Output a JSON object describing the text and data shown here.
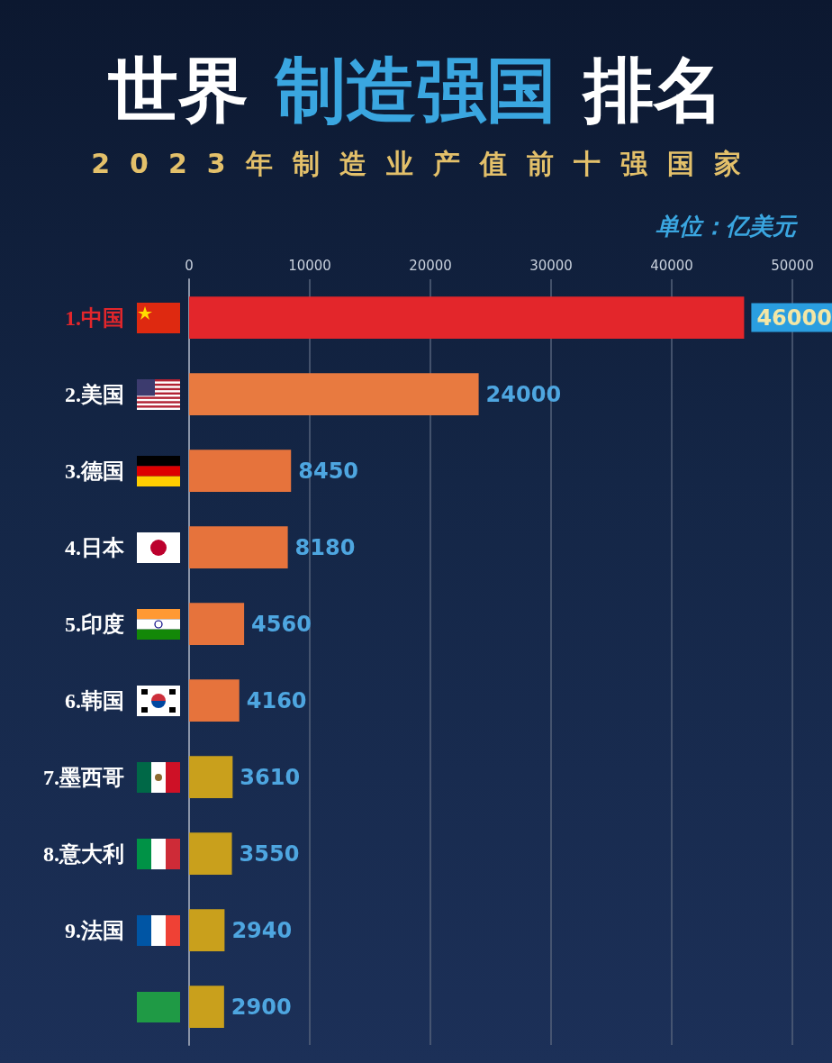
{
  "chart_data": {
    "type": "bar",
    "orientation": "horizontal",
    "title": "世界 制造强国 排名",
    "subtitle": "2023年制造业产值前十强国家",
    "annotations": [
      "单位：亿美元"
    ],
    "categories": [
      "1.中国",
      "2.美国",
      "3.德国",
      "4.日本",
      "5.印度",
      "6.韩国",
      "7.墨西哥",
      "8.意大利",
      "9.法国",
      null
    ],
    "values": [
      46000,
      24000,
      8450,
      8180,
      4560,
      4160,
      3610,
      3550,
      2940,
      2900
    ],
    "colors": [
      "#e3262b",
      "#e87a40",
      "#e6733c",
      "#e6733c",
      "#e6733c",
      "#e6733c",
      "#c9a01c",
      "#c9a01c",
      "#c9a01c",
      "#c9a01c"
    ],
    "xlim": [
      0,
      50000
    ],
    "xticks": [
      0,
      10000,
      20000,
      30000,
      40000,
      50000
    ],
    "grid": "x",
    "data_labels": true
  }
}
